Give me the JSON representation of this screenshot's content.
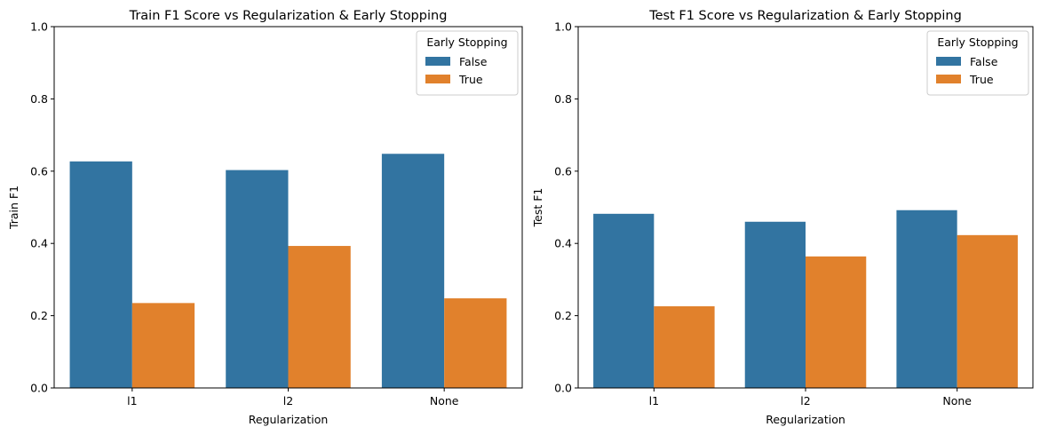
{
  "chart_data": [
    {
      "type": "bar",
      "title": "Train F1 Score vs Regularization & Early Stopping",
      "xlabel": "Regularization",
      "ylabel": "Train F1",
      "categories": [
        "l1",
        "l2",
        "None"
      ],
      "ylim": [
        0,
        1.0
      ],
      "yticks": [
        "0.0",
        "0.2",
        "0.4",
        "0.6",
        "0.8",
        "1.0"
      ],
      "legend": {
        "title": "Early Stopping",
        "placement": "top-right"
      },
      "series": [
        {
          "name": "False",
          "color": "#3274a1",
          "values": [
            0.627,
            0.603,
            0.648
          ]
        },
        {
          "name": "True",
          "color": "#e1812c",
          "values": [
            0.235,
            0.393,
            0.248
          ]
        }
      ]
    },
    {
      "type": "bar",
      "title": "Test F1 Score vs Regularization & Early Stopping",
      "xlabel": "Regularization",
      "ylabel": "Test F1",
      "categories": [
        "l1",
        "l2",
        "None"
      ],
      "ylim": [
        0,
        1.0
      ],
      "yticks": [
        "0.0",
        "0.2",
        "0.4",
        "0.6",
        "0.8",
        "1.0"
      ],
      "legend": {
        "title": "Early Stopping",
        "placement": "top-right"
      },
      "series": [
        {
          "name": "False",
          "color": "#3274a1",
          "values": [
            0.482,
            0.46,
            0.492
          ]
        },
        {
          "name": "True",
          "color": "#e1812c",
          "values": [
            0.226,
            0.364,
            0.423
          ]
        }
      ]
    }
  ]
}
